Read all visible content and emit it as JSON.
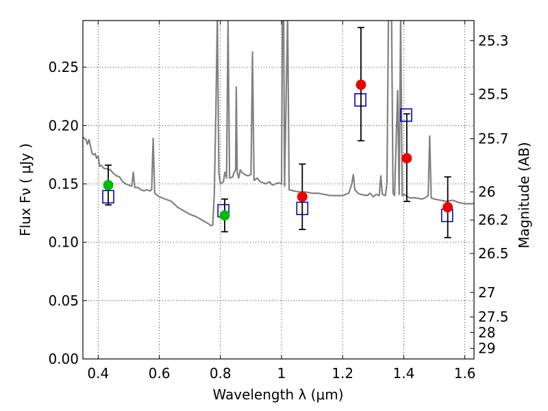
{
  "chart_data": {
    "type": "scatter",
    "title": "",
    "xlabel": "Wavelength  λ (μm)",
    "ylabel": "Flux  Fν  ( μJy )",
    "ylabel_right": "Magnitude (AB)",
    "xlim": [
      0.35,
      1.63
    ],
    "ylim": [
      0.0,
      0.29
    ],
    "grid": true,
    "legend": "none",
    "x_ticks": [
      {
        "value": 0.4,
        "label": "0.4"
      },
      {
        "value": 0.6,
        "label": "0.6"
      },
      {
        "value": 0.8,
        "label": "0.8"
      },
      {
        "value": 1.0,
        "label": "1"
      },
      {
        "value": 1.2,
        "label": "1.2"
      },
      {
        "value": 1.4,
        "label": "1.4"
      },
      {
        "value": 1.6,
        "label": "1.6"
      }
    ],
    "y_ticks": [
      {
        "value": 0.0,
        "label": "0.00"
      },
      {
        "value": 0.05,
        "label": "0.05"
      },
      {
        "value": 0.1,
        "label": "0.10"
      },
      {
        "value": 0.15,
        "label": "0.15"
      },
      {
        "value": 0.2,
        "label": "0.20"
      },
      {
        "value": 0.25,
        "label": "0.25"
      }
    ],
    "mag_ticks": [
      {
        "label": "25.3",
        "flux": 0.2728
      },
      {
        "label": "25.5",
        "flux": 0.2269
      },
      {
        "label": "25.7",
        "flux": 0.1887
      },
      {
        "label": "26",
        "flux": 0.1432
      },
      {
        "label": "26.2",
        "flux": 0.1191
      },
      {
        "label": "26.5",
        "flux": 0.0904
      },
      {
        "label": "27",
        "flux": 0.057
      },
      {
        "label": "27.5",
        "flux": 0.036
      },
      {
        "label": "28",
        "flux": 0.0227
      },
      {
        "label": "29",
        "flux": 0.009
      }
    ],
    "series": [
      {
        "kind": "template",
        "color": "#808080",
        "points": [
          [
            0.35,
            0.19
          ],
          [
            0.36,
            0.188
          ],
          [
            0.365,
            0.184
          ],
          [
            0.37,
            0.188
          ],
          [
            0.375,
            0.182
          ],
          [
            0.38,
            0.176
          ],
          [
            0.385,
            0.175
          ],
          [
            0.39,
            0.176
          ],
          [
            0.395,
            0.172
          ],
          [
            0.4,
            0.174
          ],
          [
            0.405,
            0.165
          ],
          [
            0.41,
            0.166
          ],
          [
            0.42,
            0.163
          ],
          [
            0.43,
            0.163
          ],
          [
            0.44,
            0.162
          ],
          [
            0.45,
            0.159
          ],
          [
            0.46,
            0.157
          ],
          [
            0.47,
            0.156
          ],
          [
            0.48,
            0.152
          ],
          [
            0.49,
            0.15
          ],
          [
            0.5,
            0.149
          ],
          [
            0.51,
            0.148
          ],
          [
            0.515,
            0.16
          ],
          [
            0.52,
            0.147
          ],
          [
            0.53,
            0.147
          ],
          [
            0.54,
            0.145
          ],
          [
            0.55,
            0.144
          ],
          [
            0.56,
            0.145
          ],
          [
            0.57,
            0.144
          ],
          [
            0.575,
            0.145
          ],
          [
            0.58,
            0.189
          ],
          [
            0.585,
            0.142
          ],
          [
            0.6,
            0.139
          ],
          [
            0.62,
            0.137
          ],
          [
            0.64,
            0.135
          ],
          [
            0.66,
            0.13
          ],
          [
            0.68,
            0.127
          ],
          [
            0.7,
            0.124
          ],
          [
            0.72,
            0.122
          ],
          [
            0.74,
            0.119
          ],
          [
            0.76,
            0.116
          ],
          [
            0.77,
            0.114
          ],
          [
            0.775,
            0.115
          ],
          [
            0.78,
            0.14
          ],
          [
            0.785,
            0.21
          ],
          [
            0.79,
            0.295
          ],
          [
            0.795,
            0.16
          ],
          [
            0.8,
            0.15
          ],
          [
            0.81,
            0.152
          ],
          [
            0.815,
            0.16
          ],
          [
            0.82,
            0.155
          ],
          [
            0.825,
            0.29
          ],
          [
            0.83,
            0.155
          ],
          [
            0.84,
            0.156
          ],
          [
            0.845,
            0.16
          ],
          [
            0.85,
            0.162
          ],
          [
            0.852,
            0.233
          ],
          [
            0.855,
            0.16
          ],
          [
            0.86,
            0.155
          ],
          [
            0.865,
            0.162
          ],
          [
            0.87,
            0.16
          ],
          [
            0.88,
            0.158
          ],
          [
            0.89,
            0.157
          ],
          [
            0.9,
            0.158
          ],
          [
            0.905,
            0.263
          ],
          [
            0.91,
            0.153
          ],
          [
            0.92,
            0.155
          ],
          [
            0.93,
            0.152
          ],
          [
            0.94,
            0.151
          ],
          [
            0.95,
            0.15
          ],
          [
            0.96,
            0.152
          ],
          [
            0.97,
            0.149
          ],
          [
            0.98,
            0.15
          ],
          [
            0.99,
            0.151
          ],
          [
            1.0,
            0.15
          ],
          [
            1.003,
            0.295
          ],
          [
            1.007,
            0.295
          ],
          [
            1.01,
            0.148
          ],
          [
            1.02,
            0.295
          ],
          [
            1.025,
            0.145
          ],
          [
            1.04,
            0.144
          ],
          [
            1.06,
            0.143
          ],
          [
            1.08,
            0.143
          ],
          [
            1.1,
            0.142
          ],
          [
            1.12,
            0.142
          ],
          [
            1.14,
            0.141
          ],
          [
            1.16,
            0.14
          ],
          [
            1.18,
            0.14
          ],
          [
            1.2,
            0.14
          ],
          [
            1.22,
            0.142
          ],
          [
            1.23,
            0.15
          ],
          [
            1.235,
            0.158
          ],
          [
            1.24,
            0.145
          ],
          [
            1.25,
            0.142
          ],
          [
            1.26,
            0.141
          ],
          [
            1.28,
            0.14
          ],
          [
            1.29,
            0.142
          ],
          [
            1.3,
            0.139
          ],
          [
            1.31,
            0.141
          ],
          [
            1.32,
            0.14
          ],
          [
            1.325,
            0.157
          ],
          [
            1.33,
            0.141
          ],
          [
            1.34,
            0.14
          ],
          [
            1.345,
            0.15
          ],
          [
            1.35,
            0.295
          ],
          [
            1.36,
            0.295
          ],
          [
            1.365,
            0.142
          ],
          [
            1.37,
            0.14
          ],
          [
            1.38,
            0.23
          ],
          [
            1.385,
            0.141
          ],
          [
            1.39,
            0.295
          ],
          [
            1.395,
            0.14
          ],
          [
            1.4,
            0.141
          ],
          [
            1.42,
            0.138
          ],
          [
            1.44,
            0.138
          ],
          [
            1.46,
            0.137
          ],
          [
            1.47,
            0.138
          ],
          [
            1.48,
            0.14
          ],
          [
            1.485,
            0.191
          ],
          [
            1.49,
            0.138
          ],
          [
            1.5,
            0.137
          ],
          [
            1.52,
            0.136
          ],
          [
            1.54,
            0.135
          ],
          [
            1.56,
            0.136
          ],
          [
            1.58,
            0.134
          ],
          [
            1.6,
            0.133
          ],
          [
            1.63,
            0.133
          ]
        ]
      },
      {
        "kind": "model",
        "marker": "square",
        "color": "#0000cc",
        "x": [
          0.433,
          0.81,
          1.068,
          1.258,
          1.408,
          1.542
        ],
        "y": [
          0.139,
          0.127,
          0.129,
          0.222,
          0.209,
          0.123
        ]
      },
      {
        "kind": "observed-optical",
        "marker": "circle",
        "color": "#00bb00",
        "x": [
          0.433,
          0.814
        ],
        "y": [
          0.149,
          0.123
        ],
        "yerr_low": [
          0.132,
          0.109
        ],
        "yerr_high": [
          0.166,
          0.137
        ]
      },
      {
        "kind": "observed-nir",
        "marker": "circle",
        "color": "#ee0000",
        "x": [
          1.068,
          1.26,
          1.41,
          1.544
        ],
        "y": [
          0.139,
          0.235,
          0.172,
          0.13
        ],
        "yerr_low": [
          0.111,
          0.187,
          0.135,
          0.104
        ],
        "yerr_high": [
          0.167,
          0.284,
          0.21,
          0.156
        ]
      }
    ]
  }
}
